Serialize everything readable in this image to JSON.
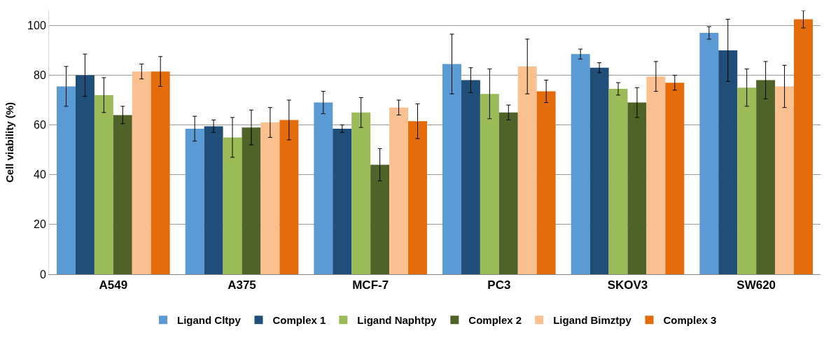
{
  "chart_data": {
    "type": "bar",
    "ylabel": "Cell viability (%)",
    "categories": [
      "A549",
      "A375",
      "MCF-7",
      "PC3",
      "SKOV3",
      "SW620"
    ],
    "series": [
      {
        "name": "Ligand Cltpy",
        "color": "#5b9bd5",
        "values": [
          75.5,
          58.5,
          69,
          84.5,
          88.5,
          97
        ],
        "errors": [
          8,
          5,
          4.5,
          12,
          2,
          2.5
        ]
      },
      {
        "name": "Complex 1",
        "color": "#1f4e79",
        "values": [
          80,
          59.5,
          58.5,
          78,
          83,
          90
        ],
        "errors": [
          8.5,
          2.5,
          1.5,
          5,
          2,
          12.5
        ]
      },
      {
        "name": "Ligand Naphtpy",
        "color": "#9bbb59",
        "values": [
          72,
          55,
          65,
          72.5,
          74.5,
          75
        ],
        "errors": [
          7,
          8,
          6,
          10,
          2.5,
          7.5
        ]
      },
      {
        "name": "Complex 2",
        "color": "#4f6228",
        "values": [
          64,
          59,
          44,
          65,
          69,
          78
        ],
        "errors": [
          3.5,
          7,
          6.5,
          3,
          6,
          7.5
        ]
      },
      {
        "name": "Ligand Bimztpy",
        "color": "#fac090",
        "values": [
          81.5,
          61,
          67,
          83.5,
          79.5,
          75.5
        ],
        "errors": [
          3,
          6,
          3,
          11,
          6,
          8.5
        ]
      },
      {
        "name": "Complex 3",
        "color": "#e46c0a",
        "values": [
          81.5,
          62,
          61.5,
          73.5,
          77,
          102.5
        ],
        "errors": [
          6,
          8,
          7,
          4.5,
          3,
          3.5
        ]
      }
    ],
    "ylim": [
      0,
      106
    ],
    "yticks": [
      0,
      20,
      40,
      60,
      80,
      100
    ],
    "grid": "y",
    "legend": "bottom"
  }
}
